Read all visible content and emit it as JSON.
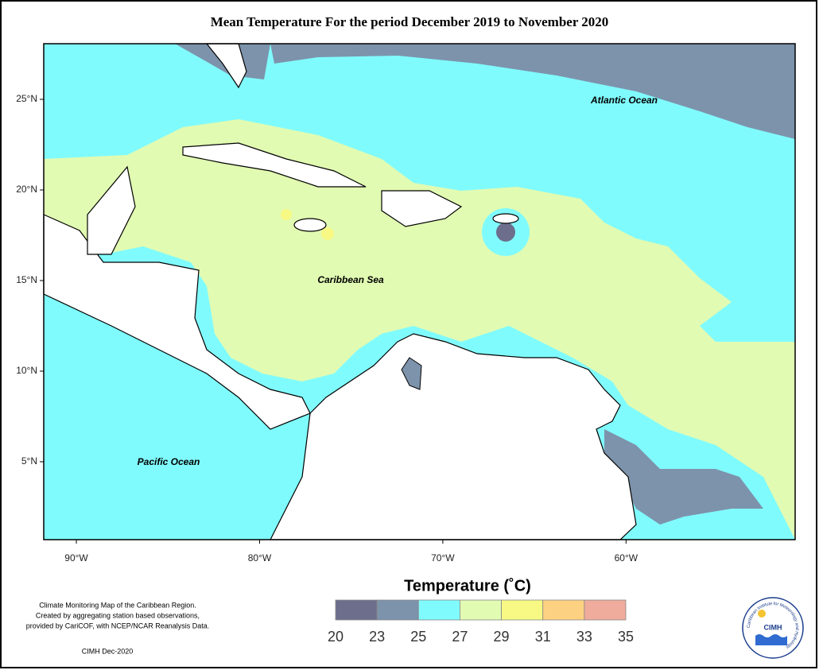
{
  "title": "Mean Temperature For the period December 2019 to November 2020",
  "map": {
    "labels": [
      "Atlantic Ocean",
      "Caribbean Sea",
      "Pacific Ocean"
    ],
    "xlim": [
      -91.78,
      -50.77
    ],
    "ylim": [
      0.7,
      28.07
    ],
    "xticks": [
      {
        "value": -90,
        "label": "90°W"
      },
      {
        "value": -80,
        "label": "80°W"
      },
      {
        "value": -70,
        "label": "70°W"
      },
      {
        "value": -60,
        "label": "60°W"
      }
    ],
    "yticks": [
      {
        "value": 5,
        "label": "5°N"
      },
      {
        "value": 10,
        "label": "10°N"
      },
      {
        "value": 15,
        "label": "15°N"
      },
      {
        "value": 20,
        "label": "20°N"
      },
      {
        "value": 25,
        "label": "25°N"
      }
    ]
  },
  "legend": {
    "title": "Temperature (˚C)",
    "bins": [
      20,
      23,
      25,
      27,
      29,
      31,
      33,
      35
    ],
    "colors": [
      "#6d6e8c",
      "#7d93ac",
      "#80fbfd",
      "#e1fbb2",
      "#f8f985",
      "#fcd181",
      "#efab9b"
    ]
  },
  "notes": [
    "Climate Monitoring Map of the Caribbean Region.",
    "Created by aggregating station based observations,",
    "provided by CariCOF, with NCEP/NCAR Reanalysis Data."
  ],
  "credit": "CIMH Dec-2020",
  "logo": {
    "name": "CIMH",
    "ring": "Caribbean Institute for Meteorology and Hydrology"
  }
}
